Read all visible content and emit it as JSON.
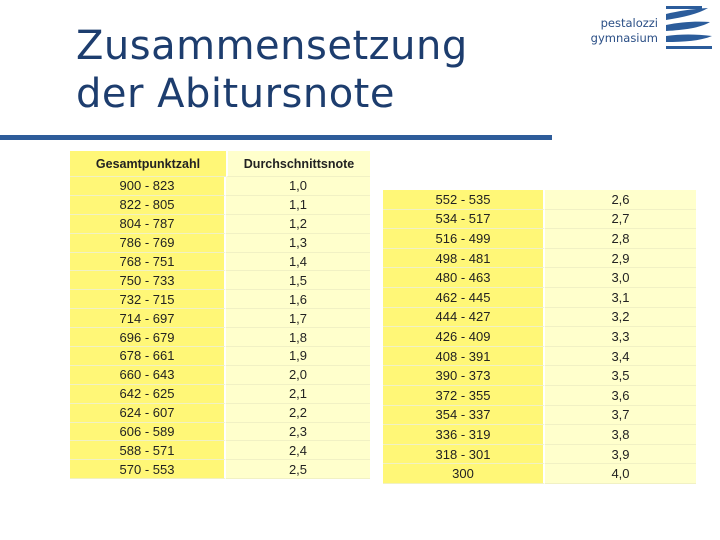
{
  "title": {
    "line1": "Zusammensetzung",
    "line2": "der Abitursnote"
  },
  "logo": {
    "line1": "pestalozzi",
    "line2": "gymnasium"
  },
  "colors": {
    "title": "#1d3d6e",
    "rule": "#2e5c9a",
    "cell_dark": "#fff777",
    "cell_light": "#ffffcc"
  },
  "table1": {
    "headers": [
      "Gesamtpunktzahl",
      "Durchschnittsnote"
    ],
    "rows": [
      [
        "900 - 823",
        "1,0"
      ],
      [
        "822 - 805",
        "1,1"
      ],
      [
        "804 - 787",
        "1,2"
      ],
      [
        "786 - 769",
        "1,3"
      ],
      [
        "768 - 751",
        "1,4"
      ],
      [
        "750 - 733",
        "1,5"
      ],
      [
        "732 - 715",
        "1,6"
      ],
      [
        "714 - 697",
        "1,7"
      ],
      [
        "696 - 679",
        "1,8"
      ],
      [
        "678 - 661",
        "1,9"
      ],
      [
        "660 - 643",
        "2,0"
      ],
      [
        "642 - 625",
        "2,1"
      ],
      [
        "624 - 607",
        "2,2"
      ],
      [
        "606 - 589",
        "2,3"
      ],
      [
        "588 - 571",
        "2,4"
      ],
      [
        "570 - 553",
        "2,5"
      ]
    ]
  },
  "table2": {
    "rows": [
      [
        "552 - 535",
        "2,6"
      ],
      [
        "534 - 517",
        "2,7"
      ],
      [
        "516 - 499",
        "2,8"
      ],
      [
        "498 - 481",
        "2,9"
      ],
      [
        "480 - 463",
        "3,0"
      ],
      [
        "462 - 445",
        "3,1"
      ],
      [
        "444 - 427",
        "3,2"
      ],
      [
        "426 - 409",
        "3,3"
      ],
      [
        "408 - 391",
        "3,4"
      ],
      [
        "390 - 373",
        "3,5"
      ],
      [
        "372 - 355",
        "3,6"
      ],
      [
        "354 - 337",
        "3,7"
      ],
      [
        "336 - 319",
        "3,8"
      ],
      [
        "318 - 301",
        "3,9"
      ],
      [
        "300",
        "4,0"
      ]
    ]
  }
}
